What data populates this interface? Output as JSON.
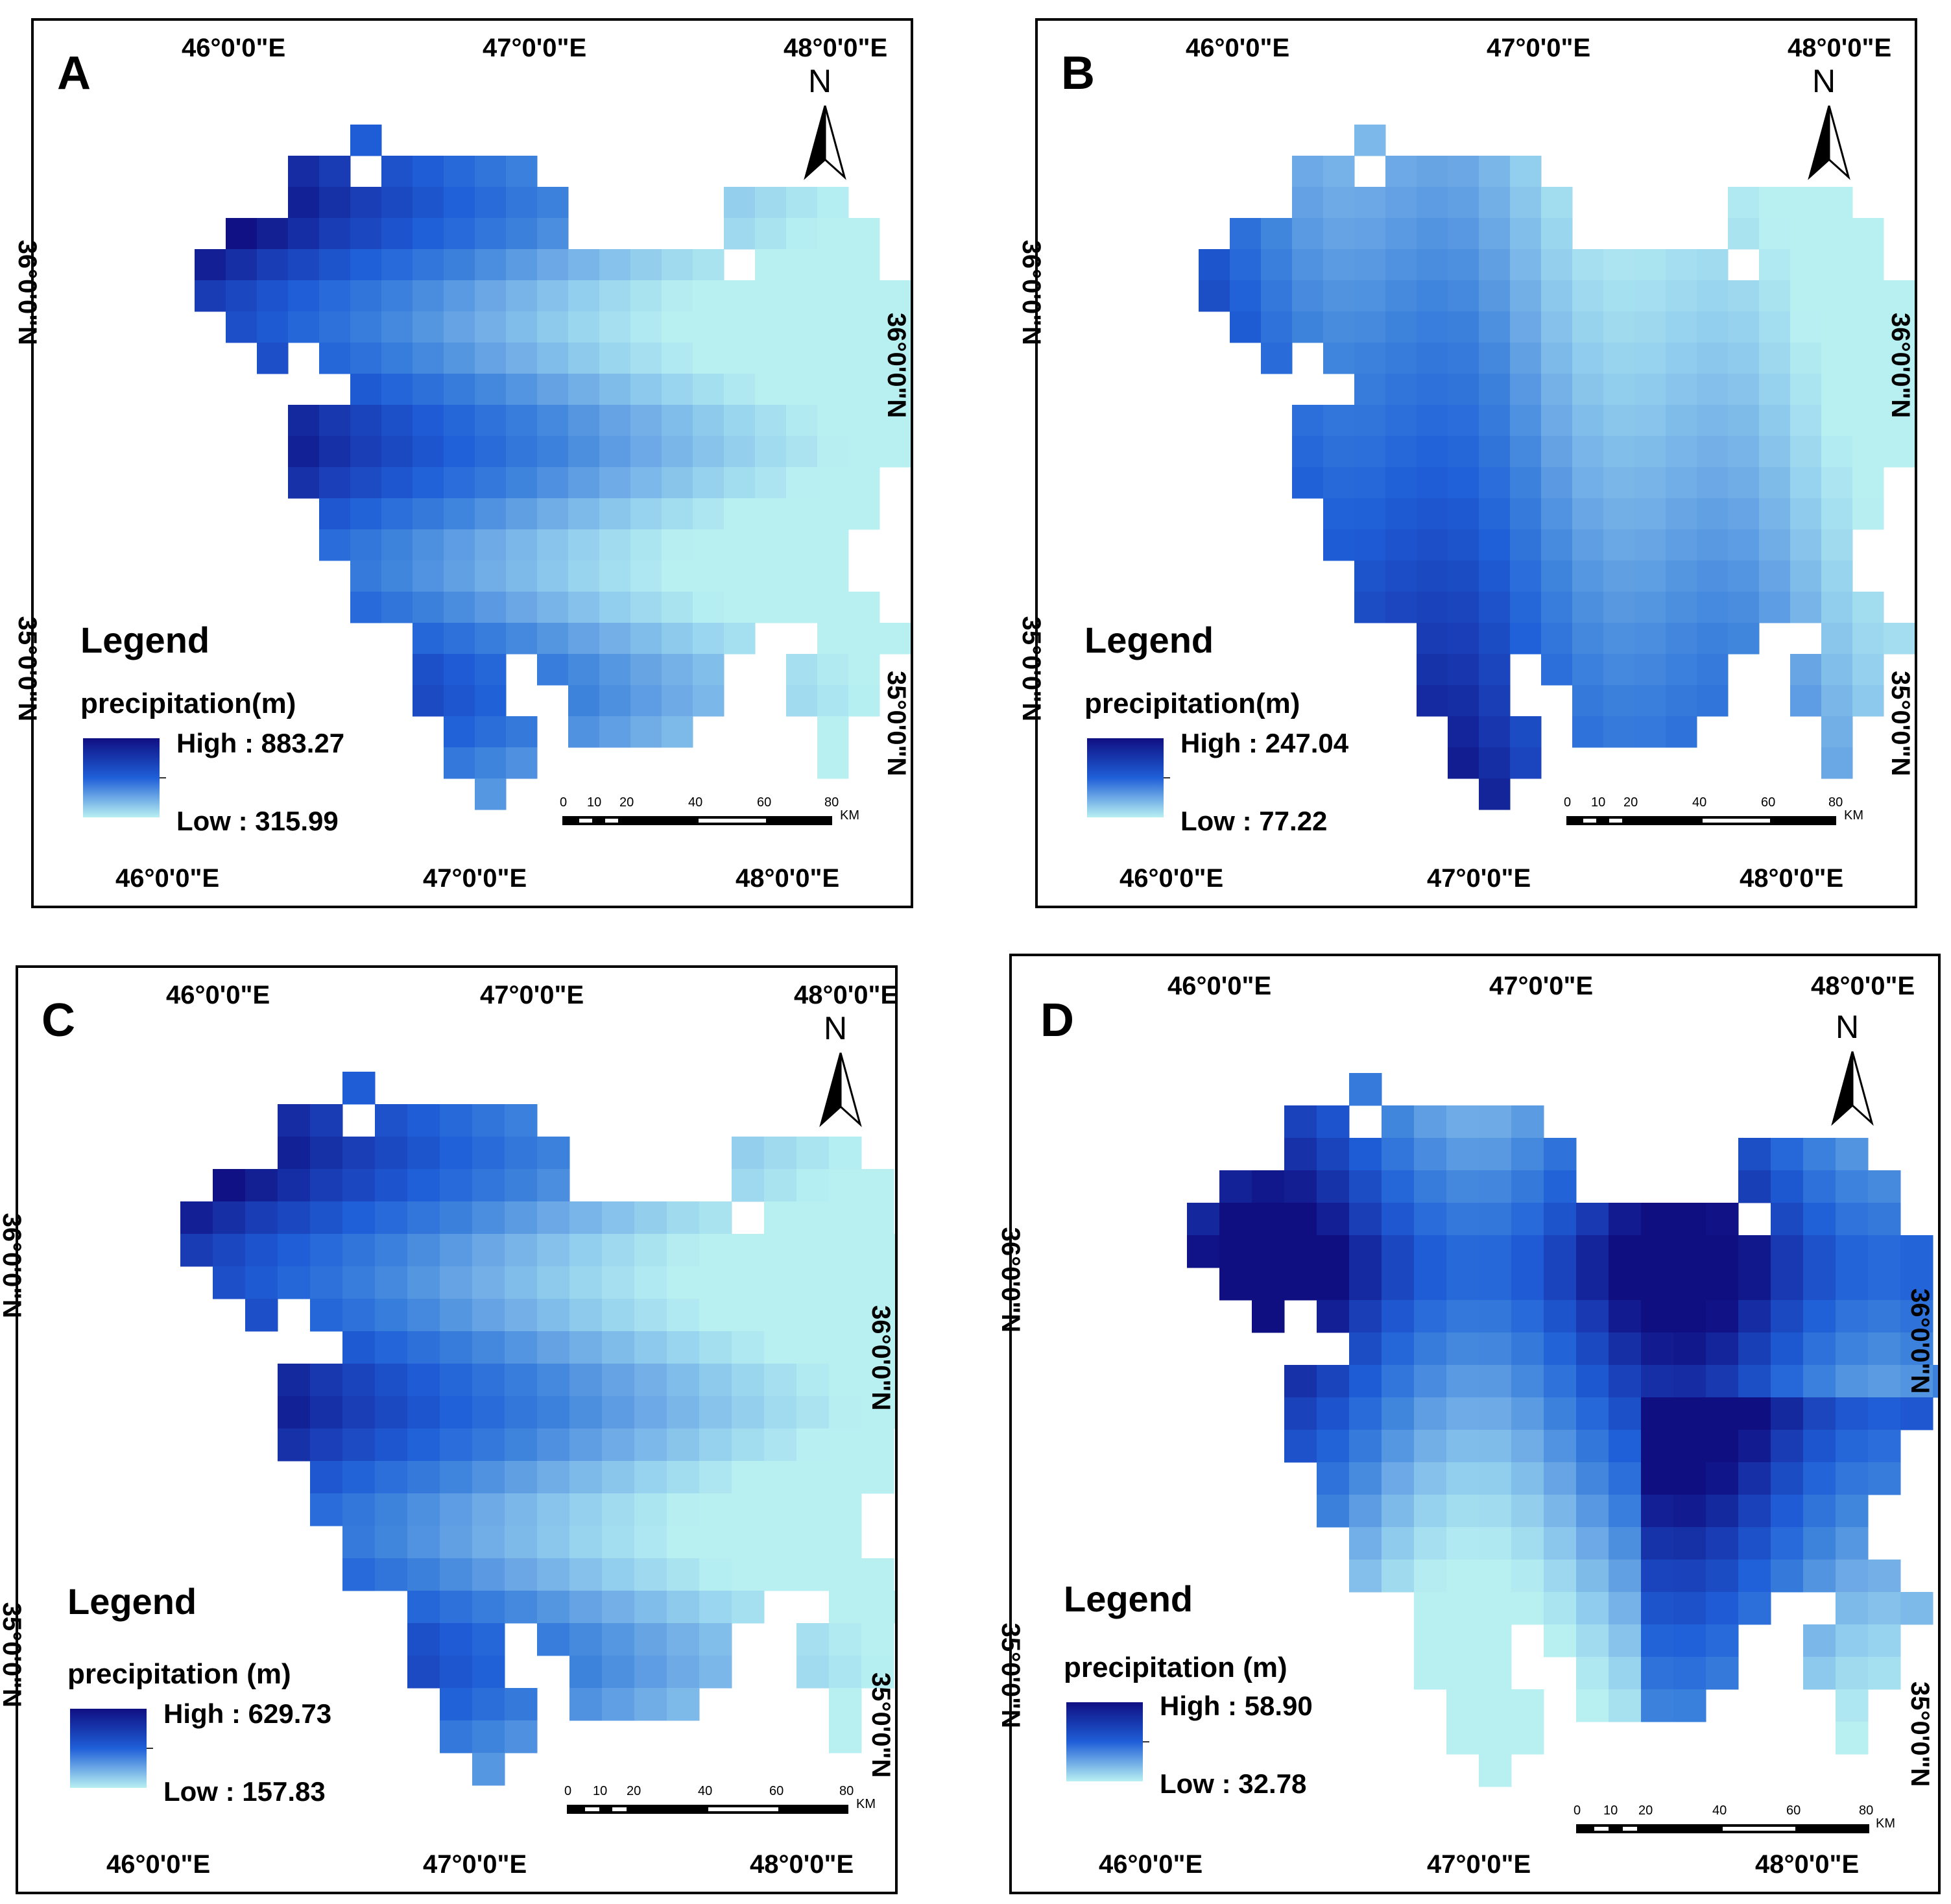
{
  "legend_title": "Legend",
  "scalebar": {
    "ticks": [
      "0",
      "10",
      "20",
      "40",
      "60",
      "80"
    ],
    "unit": "KM"
  },
  "north_label": "N",
  "color_ramp": {
    "high": "#0f0f82",
    "mid": "#1f5fd8",
    "low": "#b8f0f2"
  },
  "panels": [
    {
      "letter": "A",
      "variable_label": "precipitation(m)",
      "high": "High : 883.27",
      "low": "Low : 315.99",
      "top_ticks": [
        "46°0'0\"E",
        "47°0'0\"E",
        "48°0'0\"E"
      ],
      "bottom_ticks": [
        "46°0'0\"E",
        "47°0'0\"E",
        "48°0'0\"E"
      ],
      "left_ticks": [
        "36°0'0\"N",
        "35°0'0\"N"
      ],
      "right_ticks": [
        "36°0'0\"N",
        "35°0'0\"N"
      ],
      "pattern": "west"
    },
    {
      "letter": "B",
      "variable_label": "precipitation(m)",
      "high": "High : 247.04",
      "low": "Low : 77.22",
      "top_ticks": [
        "46°0'0\"E",
        "47°0'0\"E",
        "48°0'0\"E"
      ],
      "bottom_ticks": [
        "46°0'0\"E",
        "47°0'0\"E",
        "48°0'0\"E"
      ],
      "left_ticks": [
        "36°0'0\"N",
        "35°0'0\"N"
      ],
      "right_ticks": [
        "36°0'0\"N",
        "35°0'0\"N"
      ],
      "pattern": "southwest"
    },
    {
      "letter": "C",
      "variable_label": "precipitation (m)",
      "high": "High : 629.73",
      "low": "Low : 157.83",
      "top_ticks": [
        "46°0'0\"E",
        "47°0'0\"E",
        "48°0'0\"E"
      ],
      "bottom_ticks": [
        "46°0'0\"E",
        "47°0'0\"E",
        "48°0'0\"E"
      ],
      "left_ticks": [
        "36°0'0\"N",
        "35°0'0\"N"
      ],
      "right_ticks": [
        "36°0'0\"N",
        "35°0'0\"N"
      ],
      "pattern": "west"
    },
    {
      "letter": "D",
      "variable_label": "precipitation (m)",
      "high": "High : 58.90",
      "low": "Low : 32.78",
      "top_ticks": [
        "46°0'0\"E",
        "47°0'0\"E",
        "48°0'0\"E"
      ],
      "bottom_ticks": [
        "46°0'0\"E",
        "47°0'0\"E",
        "48°0'0\"E"
      ],
      "left_ticks": [
        "36°0'0\"N",
        "35°0'0\"N"
      ],
      "right_ticks": [
        "36°0'0\"N",
        "35°0'0\"N"
      ],
      "pattern": "north"
    }
  ]
}
